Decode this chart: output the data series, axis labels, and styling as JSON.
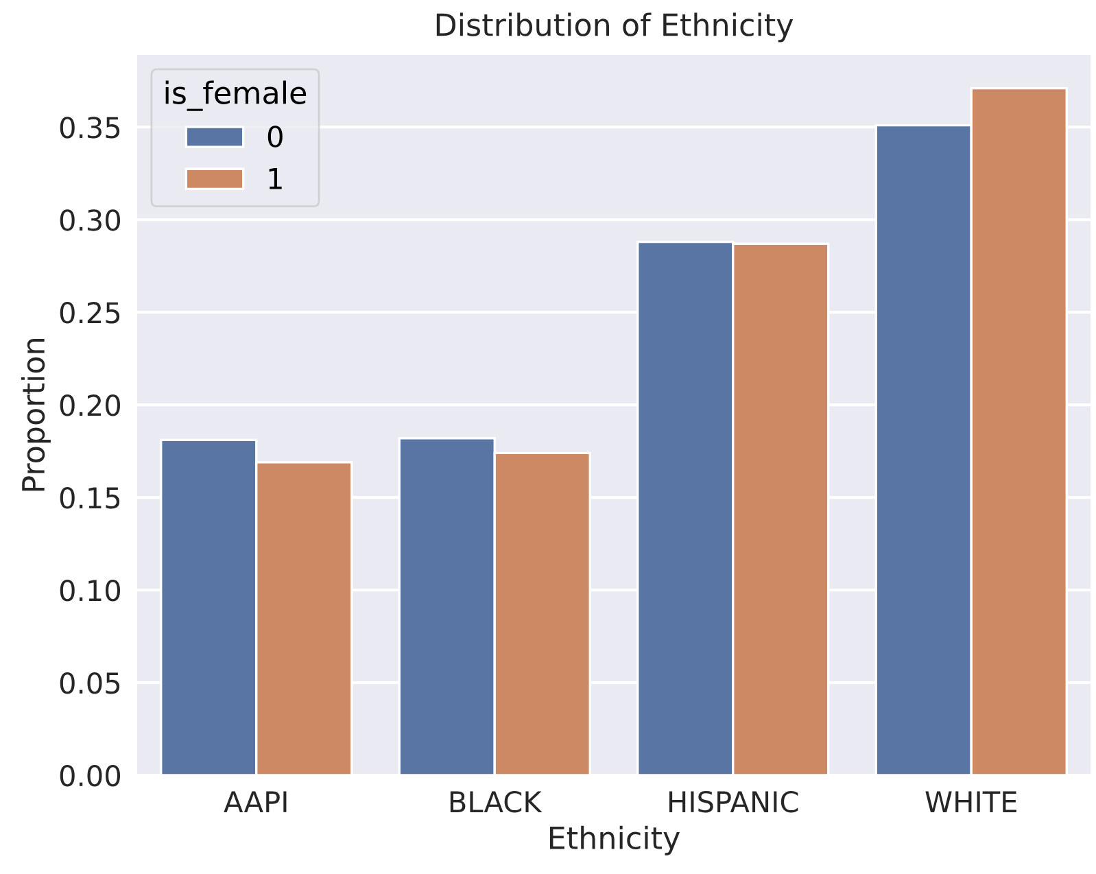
{
  "chart_data": {
    "type": "bar",
    "title": "Distribution of Ethnicity",
    "xlabel": "Ethnicity",
    "ylabel": "Proportion",
    "legend_title": "is_female",
    "categories": [
      "AAPI",
      "BLACK",
      "HISPANIC",
      "WHITE"
    ],
    "series": [
      {
        "name": "0",
        "color": "#5875a4",
        "values": [
          0.181,
          0.182,
          0.288,
          0.351
        ]
      },
      {
        "name": "1",
        "color": "#cc8963",
        "values": [
          0.169,
          0.174,
          0.287,
          0.371
        ]
      }
    ],
    "ylim": [
      0,
      0.389
    ],
    "yticks": [
      {
        "value": 0,
        "label": "0.00"
      },
      {
        "value": 0.05,
        "label": "0.05"
      },
      {
        "value": 0.1,
        "label": "0.10"
      },
      {
        "value": 0.15,
        "label": "0.15"
      },
      {
        "value": 0.2,
        "label": "0.20"
      },
      {
        "value": 0.25,
        "label": "0.25"
      },
      {
        "value": 0.3,
        "label": "0.30"
      },
      {
        "value": 0.35,
        "label": "0.35"
      }
    ],
    "grid": "y",
    "legend": "top left"
  }
}
